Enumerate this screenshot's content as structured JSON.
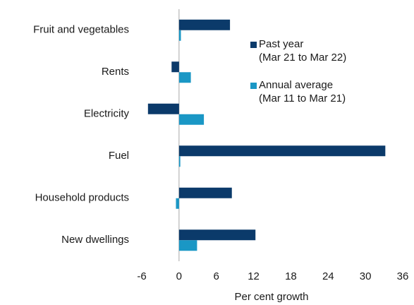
{
  "chart_data": {
    "type": "bar",
    "orientation": "horizontal",
    "x_label": "Per cent growth",
    "categories": [
      "Fruit and vegetables",
      "Rents",
      "Electricity",
      "Fuel",
      "Household products",
      "New dwellings"
    ],
    "series": [
      {
        "name": "Past year\n(Mar 21 to Mar 22)",
        "color": "#0b3a6a",
        "values": [
          8.2,
          -1.2,
          -5.0,
          33.2,
          8.5,
          12.3
        ]
      },
      {
        "name": "Annual average\n(Mar 11 to Mar 21)",
        "color": "#1a97c5",
        "values": [
          0.3,
          1.9,
          4.0,
          0.2,
          -0.5,
          2.9
        ]
      }
    ],
    "xlim": [
      -6,
      36
    ],
    "xticks": [
      -6,
      0,
      6,
      12,
      18,
      24,
      30,
      36
    ],
    "grid": false,
    "legend": "upper right"
  }
}
